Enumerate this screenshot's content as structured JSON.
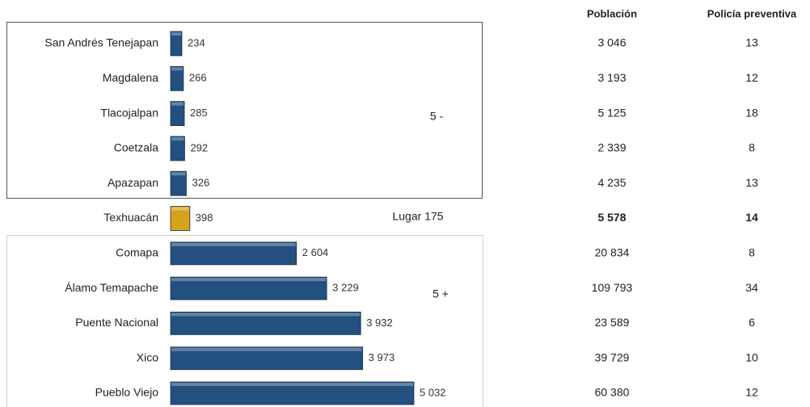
{
  "chart_data": {
    "type": "bar",
    "categories": [
      "San Andrés Tenejapan",
      "Magdalena",
      "Tlacojalpan",
      "Coetzala",
      "Apazapan",
      "Texhuacán",
      "Comapa",
      "Álamo Temapache",
      "Puente Nacional",
      "Xico",
      "Pueblo Viejo"
    ],
    "values": [
      234,
      266,
      285,
      292,
      326,
      398,
      2604,
      3229,
      3932,
      3973,
      5032
    ],
    "value_labels": [
      "234",
      "266",
      "285",
      "292",
      "326",
      "398",
      "2 604",
      "3 229",
      "3 932",
      "3 973",
      "5 032"
    ],
    "colors": [
      "#23507f",
      "#23507f",
      "#23507f",
      "#23507f",
      "#23507f",
      "#d9a21b",
      "#23507f",
      "#23507f",
      "#23507f",
      "#23507f",
      "#23507f"
    ],
    "group_labels": [
      "5 -",
      "Lugar 175",
      "5 +"
    ]
  },
  "table": {
    "columns": [
      "Población",
      "Policía preventiva"
    ],
    "rows": [
      [
        "3 046",
        "13"
      ],
      [
        "3 193",
        "12"
      ],
      [
        "5 125",
        "18"
      ],
      [
        "2 339",
        "8"
      ],
      [
        "4 235",
        "13"
      ],
      [
        "5 578",
        "14"
      ],
      [
        "20 834",
        "8"
      ],
      [
        "109 793",
        "34"
      ],
      [
        "23 589",
        "6"
      ],
      [
        "39 729",
        "10"
      ],
      [
        "60 380",
        "12"
      ]
    ]
  }
}
